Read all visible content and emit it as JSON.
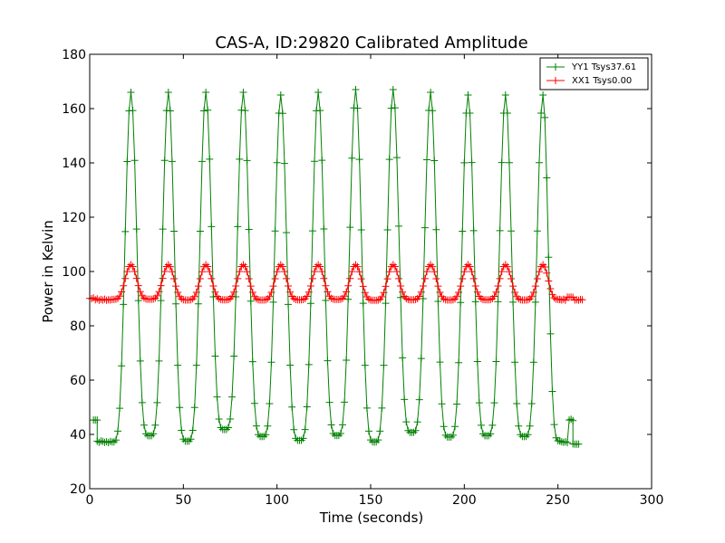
{
  "chart_data": {
    "type": "line",
    "title": "CAS-A, ID:29820 Calibrated Amplitude",
    "xlabel": "Time (seconds)",
    "ylabel": "Power in Kelvin",
    "xlim": [
      0,
      300
    ],
    "ylim": [
      20,
      180
    ],
    "xticks": [
      0,
      50,
      100,
      150,
      200,
      250,
      300
    ],
    "yticks": [
      20,
      40,
      60,
      80,
      100,
      120,
      140,
      160,
      180
    ],
    "grid": false,
    "legend_position": "top-right",
    "series": [
      {
        "name": "YY1 Tsys37.61",
        "color": "#008000",
        "marker": "+",
        "x_range": [
          2,
          261
        ],
        "pre_segment": [
          [
            2,
            45.3
          ],
          [
            3,
            45.3
          ],
          [
            4,
            45.3
          ],
          [
            4,
            37.5
          ],
          [
            5,
            37.1
          ],
          [
            6,
            37.6
          ],
          [
            7,
            37.4
          ],
          [
            8,
            37.1
          ],
          [
            9,
            37.3
          ],
          [
            10,
            37.0
          ],
          [
            11,
            37.4
          ],
          [
            12,
            37.2
          ]
        ],
        "post_segment": [
          [
            251,
            37.6
          ],
          [
            252,
            37.3
          ],
          [
            253,
            37.1
          ],
          [
            254,
            37.3
          ],
          [
            255,
            37.0
          ],
          [
            256,
            45.3
          ],
          [
            257,
            45.6
          ],
          [
            258,
            45.1
          ],
          [
            258,
            36.5
          ],
          [
            259,
            36.4
          ],
          [
            260,
            36.4
          ],
          [
            261,
            36.4
          ]
        ],
        "oscillation": {
          "start": 12,
          "end": 251,
          "peaks": [
            [
              22,
              166
            ],
            [
              42,
              166
            ],
            [
              62,
              166
            ],
            [
              82,
              166
            ],
            [
              102,
              165
            ],
            [
              122,
              166
            ],
            [
              142,
              167
            ],
            [
              162,
              167
            ],
            [
              182,
              166
            ],
            [
              202,
              165
            ],
            [
              222,
              165
            ],
            [
              242,
              165
            ]
          ],
          "troughs": [
            [
              32,
              39.5
            ],
            [
              52,
              37.5
            ],
            [
              72,
              41.8
            ],
            [
              92,
              39.2
            ],
            [
              112,
              37.8
            ],
            [
              132,
              39.6
            ],
            [
              152,
              37.2
            ],
            [
              172,
              40.7
            ],
            [
              192,
              39.0
            ],
            [
              212,
              39.5
            ],
            [
              232,
              39.2
            ]
          ]
        }
      },
      {
        "name": "XX1 Tsys0.00",
        "color": "#ff0000",
        "marker": "+",
        "x_range": [
          0,
          263
        ],
        "pre_segment": [
          [
            0,
            90.1
          ],
          [
            1,
            90.0
          ],
          [
            2,
            90.3
          ],
          [
            3,
            89.6
          ],
          [
            4,
            89.9
          ],
          [
            5,
            89.4
          ],
          [
            6,
            89.7
          ],
          [
            7,
            89.5
          ],
          [
            8,
            89.8
          ],
          [
            9,
            89.4
          ],
          [
            10,
            89.6
          ],
          [
            11,
            89.5
          ],
          [
            12,
            89.7
          ]
        ],
        "post_segment": [
          [
            251,
            89.7
          ],
          [
            252,
            89.5
          ],
          [
            253,
            89.8
          ],
          [
            254,
            89.4
          ],
          [
            255,
            90.6
          ],
          [
            256,
            90.5
          ],
          [
            257,
            90.6
          ],
          [
            258,
            90.5
          ],
          [
            259,
            89.5
          ],
          [
            260,
            89.6
          ],
          [
            261,
            89.4
          ],
          [
            262,
            89.7
          ],
          [
            263,
            89.6
          ]
        ],
        "oscillation": {
          "start": 12,
          "end": 251,
          "peaks": [
            [
              22,
              102.5
            ],
            [
              42,
              102.5
            ],
            [
              62,
              102.5
            ],
            [
              82,
              102.5
            ],
            [
              102,
              102.5
            ],
            [
              122,
              102.5
            ],
            [
              142,
              102.5
            ],
            [
              162,
              102.5
            ],
            [
              182,
              102.5
            ],
            [
              202,
              102.5
            ],
            [
              222,
              102.5
            ],
            [
              242,
              102.5
            ]
          ],
          "troughs": [
            [
              32,
              89.8
            ],
            [
              52,
              89.5
            ],
            [
              72,
              89.6
            ],
            [
              92,
              89.5
            ],
            [
              112,
              89.6
            ],
            [
              132,
              89.7
            ],
            [
              152,
              89.4
            ],
            [
              172,
              89.6
            ],
            [
              192,
              89.5
            ],
            [
              212,
              89.6
            ],
            [
              232,
              89.5
            ]
          ]
        }
      }
    ]
  }
}
